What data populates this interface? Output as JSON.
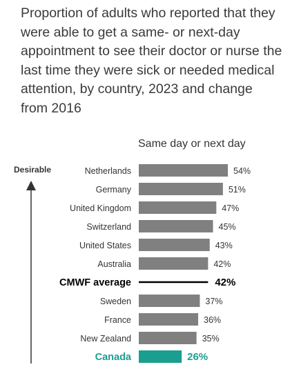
{
  "title": "Proportion of adults who reported that they were able to get a same- or next-day appointment to see their doctor or nurse the last time they were sick or needed medical attention, by country, 2023 and change from 2016",
  "column_header": "Same day or next day",
  "arrow_label": "Desirable",
  "colors": {
    "bar": "#808080",
    "highlight": "#1a9e8f",
    "average_line": "#000000",
    "text": "#333333"
  },
  "chart_data": {
    "type": "bar",
    "orientation": "horizontal",
    "title": "Proportion of adults who reported that they were able to get a same- or next-day appointment to see their doctor or nurse the last time they were sick or needed medical attention, by country, 2023 and change from 2016",
    "xlabel": "Same day or next day",
    "ylabel": "",
    "xlim": [
      0,
      60
    ],
    "categories": [
      "Netherlands",
      "Germany",
      "United Kingdom",
      "Switzerland",
      "United States",
      "Australia",
      "CMWF average",
      "Sweden",
      "France",
      "New Zealand",
      "Canada"
    ],
    "values": [
      54,
      51,
      47,
      45,
      43,
      42,
      42,
      37,
      36,
      35,
      26
    ],
    "value_labels": [
      "54%",
      "51%",
      "47%",
      "45%",
      "43%",
      "42%",
      "42%",
      "37%",
      "36%",
      "35%",
      "26%"
    ],
    "highlight": "Canada",
    "average": "CMWF average"
  }
}
